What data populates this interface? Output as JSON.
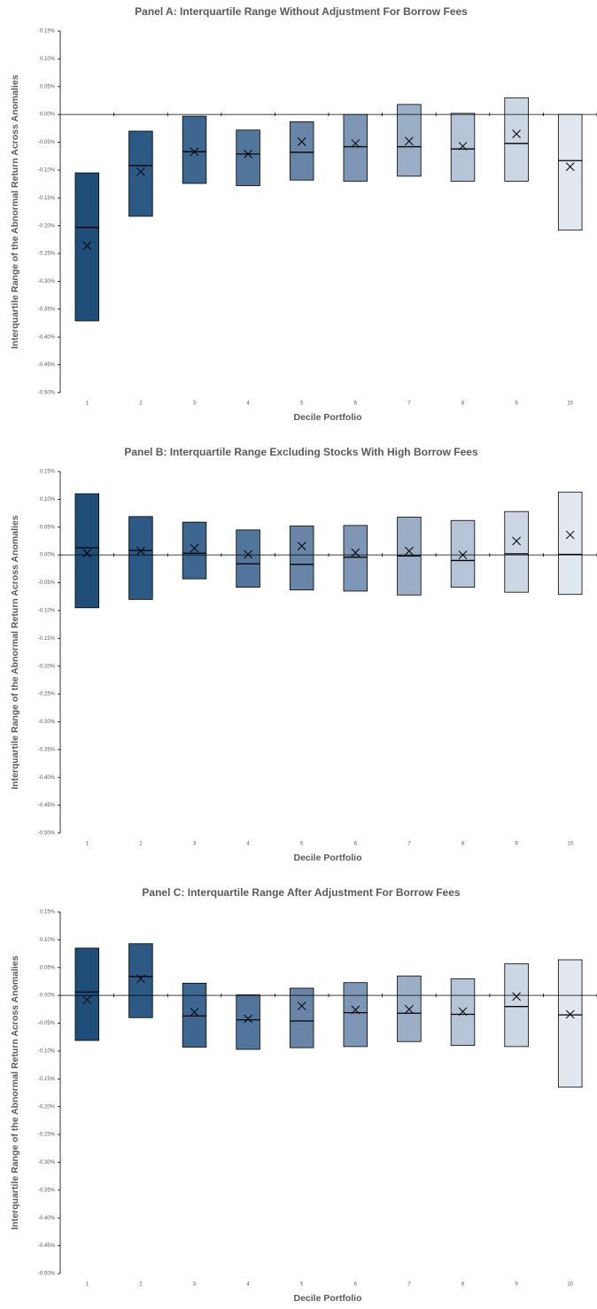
{
  "chart_data": [
    {
      "type": "box",
      "title": "Panel A: Interquartile Range Without Adjustment For Borrow Fees",
      "x_label": "Decile Portfolio",
      "y_label": "Interquartile Range of the Abnormal Return Across Anomalies",
      "categories": [
        "1",
        "2",
        "3",
        "4",
        "5",
        "6",
        "7",
        "8",
        "9",
        "10"
      ],
      "colors": [
        "#1f4e79",
        "#2d5a85",
        "#3d6690",
        "#52759c",
        "#6885a8",
        "#7f97b6",
        "#9aaec6",
        "#b5c4d6",
        "#cdd7e4",
        "#e2e8f0"
      ],
      "q3": [
        -0.105,
        -0.03,
        -0.003,
        -0.028,
        -0.013,
        0.0,
        0.018,
        0.002,
        0.03,
        0.0
      ],
      "median": [
        -0.203,
        -0.092,
        -0.067,
        -0.071,
        -0.068,
        -0.058,
        -0.058,
        -0.062,
        -0.052,
        -0.083
      ],
      "q1": [
        -0.371,
        -0.183,
        -0.124,
        -0.128,
        -0.118,
        -0.12,
        -0.111,
        -0.12,
        -0.12,
        -0.208
      ],
      "mean": [
        -0.236,
        -0.103,
        -0.067,
        -0.071,
        -0.049,
        -0.052,
        -0.048,
        -0.057,
        -0.035,
        -0.094
      ],
      "ylim": [
        -0.5,
        0.15
      ],
      "yticks": [
        {
          "value": 0.15,
          "label": "0.15%"
        },
        {
          "value": 0.1,
          "label": "0.10%"
        },
        {
          "value": 0.05,
          "label": "0.05%"
        },
        {
          "value": 0,
          "label": "0.00%"
        },
        {
          "value": -0.05,
          "label": "-0.05%"
        },
        {
          "value": -0.1,
          "label": "-0.10%"
        },
        {
          "value": -0.15,
          "label": "-0.15%"
        },
        {
          "value": -0.2,
          "label": "-0.20%"
        },
        {
          "value": -0.25,
          "label": "-0.25%"
        },
        {
          "value": -0.3,
          "label": "-0.30%"
        },
        {
          "value": -0.35,
          "label": "-0.35%"
        },
        {
          "value": -0.4,
          "label": "-0.40%"
        },
        {
          "value": -0.45,
          "label": "-0.45%"
        },
        {
          "value": -0.5,
          "label": "-0.50%"
        }
      ]
    },
    {
      "type": "box",
      "title": "Panel B: Interquartile Range Excluding Stocks With High Borrow Fees",
      "x_label": "Decile Portfolio",
      "y_label": "Interquartile Range of the Abnormal Return Across Anomalies",
      "categories": [
        "1",
        "2",
        "3",
        "4",
        "5",
        "6",
        "7",
        "8",
        "9",
        "10"
      ],
      "colors": [
        "#1f4e79",
        "#2d5a85",
        "#3d6690",
        "#52759c",
        "#6885a8",
        "#7f97b6",
        "#9aaec6",
        "#b5c4d6",
        "#cdd7e4",
        "#e2e8f0"
      ],
      "q3": [
        0.11,
        0.069,
        0.059,
        0.045,
        0.052,
        0.053,
        0.068,
        0.062,
        0.078,
        0.113
      ],
      "median": [
        0.013,
        0.008,
        0.003,
        -0.016,
        -0.017,
        -0.004,
        -0.002,
        -0.01,
        0.002,
        0.001
      ],
      "q1": [
        -0.095,
        -0.08,
        -0.043,
        -0.058,
        -0.063,
        -0.065,
        -0.072,
        -0.058,
        -0.067,
        -0.071
      ],
      "mean": [
        0.003,
        0.007,
        0.012,
        0.001,
        0.016,
        0.004,
        0.007,
        0.0,
        0.025,
        0.036
      ],
      "ylim": [
        -0.5,
        0.15
      ],
      "yticks": [
        {
          "value": 0.15,
          "label": "0.15%"
        },
        {
          "value": 0.1,
          "label": "0.10%"
        },
        {
          "value": 0.05,
          "label": "0.05%"
        },
        {
          "value": 0,
          "label": "0.00%"
        },
        {
          "value": -0.05,
          "label": "-0.05%"
        },
        {
          "value": -0.1,
          "label": "-0.10%"
        },
        {
          "value": -0.15,
          "label": "-0.15%"
        },
        {
          "value": -0.2,
          "label": "-0.20%"
        },
        {
          "value": -0.25,
          "label": "-0.25%"
        },
        {
          "value": -0.3,
          "label": "-0.30%"
        },
        {
          "value": -0.35,
          "label": "-0.35%"
        },
        {
          "value": -0.4,
          "label": "-0.40%"
        },
        {
          "value": -0.45,
          "label": "-0.45%"
        },
        {
          "value": -0.5,
          "label": "-0.50%"
        }
      ]
    },
    {
      "type": "box",
      "title": "Panel C: Interquartile Range After Adjustment For Borrow Fees",
      "x_label": "Decile Portfolio",
      "y_label": "Interquartile Range of the Abnormal Return Across Anomalies",
      "categories": [
        "1",
        "2",
        "3",
        "4",
        "5",
        "6",
        "7",
        "8",
        "9",
        "10"
      ],
      "colors": [
        "#1f4e79",
        "#2d5a85",
        "#3d6690",
        "#52759c",
        "#6885a8",
        "#7f97b6",
        "#9aaec6",
        "#b5c4d6",
        "#cdd7e4",
        "#e2e8f0"
      ],
      "q3": [
        0.085,
        0.093,
        0.022,
        0.001,
        0.013,
        0.023,
        0.035,
        0.03,
        0.057,
        0.064
      ],
      "median": [
        0.006,
        0.034,
        -0.037,
        -0.044,
        -0.046,
        -0.031,
        -0.032,
        -0.034,
        -0.02,
        -0.035
      ],
      "q1": [
        -0.081,
        -0.04,
        -0.093,
        -0.097,
        -0.094,
        -0.092,
        -0.083,
        -0.09,
        -0.092,
        -0.165
      ],
      "mean": [
        -0.008,
        0.03,
        -0.03,
        -0.042,
        -0.019,
        -0.026,
        -0.025,
        -0.029,
        -0.002,
        -0.034
      ],
      "ylim": [
        -0.5,
        0.15
      ],
      "yticks": [
        {
          "value": 0.15,
          "label": "0.15%"
        },
        {
          "value": 0.1,
          "label": "0.10%"
        },
        {
          "value": 0.05,
          "label": "0.05%"
        },
        {
          "value": 0,
          "label": "0.00%"
        },
        {
          "value": -0.05,
          "label": "-0.05%"
        },
        {
          "value": -0.1,
          "label": "-0.10%"
        },
        {
          "value": -0.15,
          "label": "-0.15%"
        },
        {
          "value": -0.2,
          "label": "-0.20%"
        },
        {
          "value": -0.25,
          "label": "-0.25%"
        },
        {
          "value": -0.3,
          "label": "-0.30%"
        },
        {
          "value": -0.35,
          "label": "-0.35%"
        },
        {
          "value": -0.4,
          "label": "-0.40%"
        },
        {
          "value": -0.45,
          "label": "-0.45%"
        },
        {
          "value": -0.5,
          "label": "-0.50%"
        }
      ]
    }
  ]
}
